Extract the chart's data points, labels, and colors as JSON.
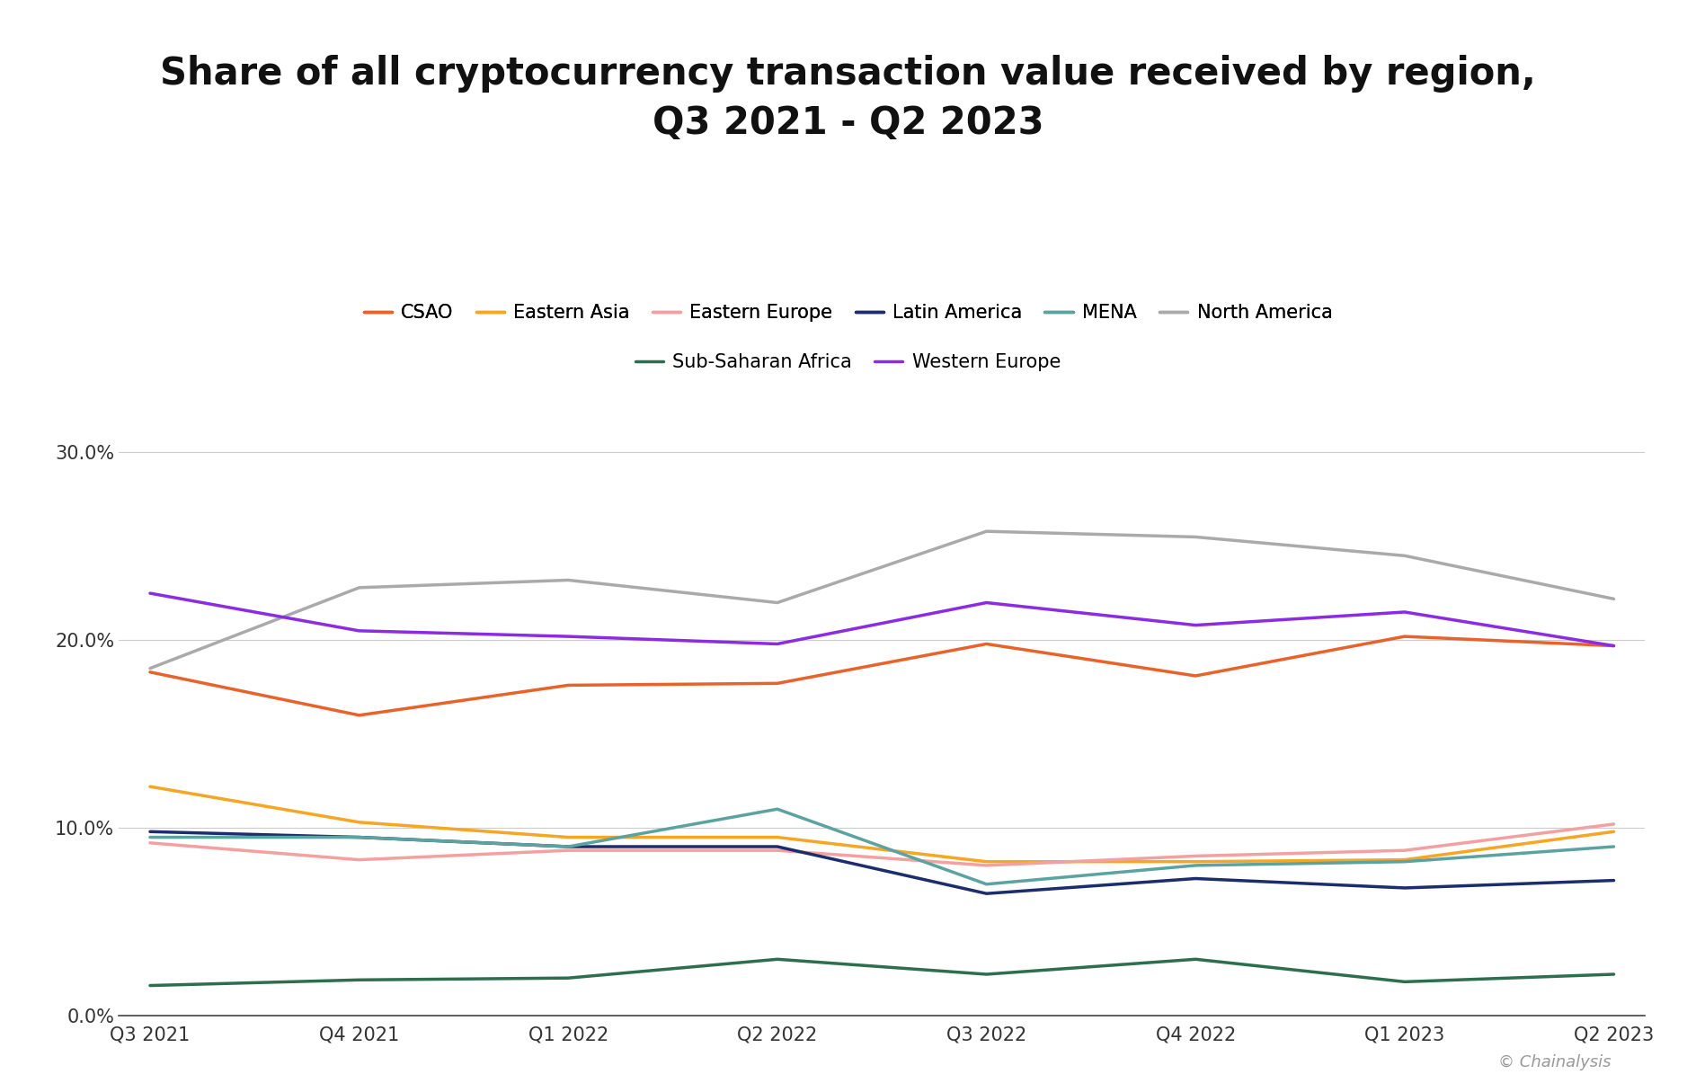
{
  "title": "Share of all cryptocurrency transaction value received by region,\nQ3 2021 - Q2 2023",
  "x_labels": [
    "Q3 2021",
    "Q4 2021",
    "Q1 2022",
    "Q2 2022",
    "Q3 2022",
    "Q4 2022",
    "Q1 2023",
    "Q2 2023"
  ],
  "series": {
    "CSAO": [
      0.183,
      0.16,
      0.176,
      0.177,
      0.198,
      0.181,
      0.202,
      0.197
    ],
    "Eastern Asia": [
      0.122,
      0.103,
      0.095,
      0.095,
      0.082,
      0.082,
      0.083,
      0.098
    ],
    "Eastern Europe": [
      0.092,
      0.083,
      0.088,
      0.088,
      0.08,
      0.085,
      0.088,
      0.102
    ],
    "Latin America": [
      0.098,
      0.095,
      0.09,
      0.09,
      0.065,
      0.073,
      0.068,
      0.072
    ],
    "MENA": [
      0.095,
      0.095,
      0.09,
      0.11,
      0.07,
      0.08,
      0.082,
      0.09
    ],
    "North America": [
      0.185,
      0.228,
      0.232,
      0.22,
      0.258,
      0.255,
      0.245,
      0.222
    ],
    "Sub-Saharan Africa": [
      0.016,
      0.019,
      0.02,
      0.03,
      0.022,
      0.03,
      0.018,
      0.022
    ],
    "Western Europe": [
      0.225,
      0.205,
      0.202,
      0.198,
      0.22,
      0.208,
      0.215,
      0.197
    ]
  },
  "colors": {
    "CSAO": "#E8622A",
    "Eastern Asia": "#F5A623",
    "Eastern Europe": "#F4A0A0",
    "Latin America": "#1C2D6E",
    "MENA": "#5BA3A0",
    "North America": "#AAAAAA",
    "Sub-Saharan Africa": "#2D6E4E",
    "Western Europe": "#8B2BE2"
  },
  "ylim": [
    0.0,
    0.32
  ],
  "yticks": [
    0.0,
    0.1,
    0.2,
    0.3
  ],
  "ytick_labels": [
    "0.0%",
    "10.0%",
    "20.0%",
    "30.0%"
  ],
  "background_color": "#ffffff",
  "title_fontsize": 30,
  "legend_fontsize": 15,
  "tick_fontsize": 15,
  "watermark": "© Chainalysis",
  "line_width": 2.5
}
